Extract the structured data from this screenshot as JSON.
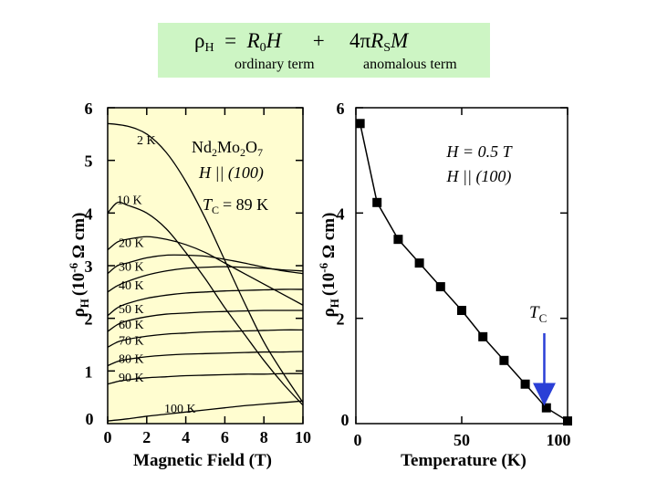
{
  "formula": {
    "rho_sym": "ρ",
    "rho_sub": "H",
    "equals": "=",
    "r0": "R",
    "r0_sub": "0",
    "h": "H",
    "plus": "+",
    "four_pi": "4π",
    "rs": "R",
    "rs_sub": "S",
    "m": "M",
    "ordinary_label": "ordinary term",
    "anomalous_label": "anomalous term"
  },
  "colors": {
    "panel_bg": "#fffdd0",
    "formula_bg": "#cdf5c4",
    "arrow": "#2a3fd6",
    "ink": "#000000"
  },
  "chart_data": [
    {
      "type": "line",
      "title": "Nd2Mo2O7, H || (100)",
      "annotation_material": "Nd",
      "annotation_material_parts": [
        "Nd",
        "2",
        "Mo",
        "2",
        "O",
        "7"
      ],
      "annotation_field": "H || (100)",
      "annotation_tc": "T",
      "annotation_tc_sub": "C",
      "annotation_tc_value": "= 89 K",
      "xlabel": "Magnetic Field (T)",
      "ylabel_rho": "ρ",
      "ylabel_sub": "H",
      "ylabel_unit_pre": "(10",
      "ylabel_unit_exp": "-6",
      "ylabel_unit_post": " Ω cm)",
      "xlim": [
        0,
        10
      ],
      "ylim": [
        0,
        6
      ],
      "xticks": [
        "0",
        "2",
        "4",
        "6",
        "8",
        "10"
      ],
      "yticks": [
        "0",
        "1",
        "2",
        "3",
        "4",
        "5",
        "6"
      ],
      "y_origin_label": "0",
      "series": [
        {
          "name": "2 K",
          "points": [
            [
              0,
              5.7
            ],
            [
              1,
              5.65
            ],
            [
              2,
              5.5
            ],
            [
              3,
              5.15
            ],
            [
              4,
              4.6
            ],
            [
              5,
              3.9
            ],
            [
              6,
              3.1
            ],
            [
              7,
              2.3
            ],
            [
              8,
              1.55
            ],
            [
              9,
              0.95
            ],
            [
              10,
              0.4
            ]
          ]
        },
        {
          "name": "10 K",
          "points": [
            [
              0,
              4.0
            ],
            [
              0.5,
              4.2
            ],
            [
              1,
              4.15
            ],
            [
              2,
              4.0
            ],
            [
              3,
              3.7
            ],
            [
              4,
              3.25
            ],
            [
              5,
              2.75
            ],
            [
              6,
              2.2
            ],
            [
              7,
              1.7
            ],
            [
              8,
              1.2
            ],
            [
              9,
              0.75
            ],
            [
              10,
              0.35
            ]
          ]
        },
        {
          "name": "20 K",
          "points": [
            [
              0,
              3.3
            ],
            [
              0.5,
              3.45
            ],
            [
              1,
              3.5
            ],
            [
              2,
              3.55
            ],
            [
              3,
              3.5
            ],
            [
              4,
              3.4
            ],
            [
              5,
              3.25
            ],
            [
              6,
              3.05
            ],
            [
              7,
              2.85
            ],
            [
              8,
              2.65
            ],
            [
              9,
              2.45
            ],
            [
              10,
              2.25
            ]
          ]
        },
        {
          "name": "30 K",
          "points": [
            [
              0,
              2.85
            ],
            [
              0.5,
              3.0
            ],
            [
              1,
              3.05
            ],
            [
              2,
              3.15
            ],
            [
              3,
              3.2
            ],
            [
              4,
              3.2
            ],
            [
              5,
              3.18
            ],
            [
              6,
              3.12
            ],
            [
              7,
              3.05
            ],
            [
              8,
              2.97
            ],
            [
              9,
              2.9
            ],
            [
              10,
              2.85
            ]
          ]
        },
        {
          "name": "40 K",
          "points": [
            [
              0,
              2.5
            ],
            [
              0.5,
              2.62
            ],
            [
              1,
              2.7
            ],
            [
              2,
              2.82
            ],
            [
              3,
              2.9
            ],
            [
              4,
              2.95
            ],
            [
              5,
              2.97
            ],
            [
              6,
              2.98
            ],
            [
              7,
              2.97
            ],
            [
              8,
              2.95
            ],
            [
              9,
              2.92
            ],
            [
              10,
              2.9
            ]
          ]
        },
        {
          "name": "50 K",
          "points": [
            [
              0,
              2.05
            ],
            [
              0.5,
              2.2
            ],
            [
              1,
              2.28
            ],
            [
              2,
              2.38
            ],
            [
              3,
              2.44
            ],
            [
              4,
              2.48
            ],
            [
              5,
              2.5
            ],
            [
              6,
              2.52
            ],
            [
              7,
              2.53
            ],
            [
              8,
              2.54
            ],
            [
              9,
              2.55
            ],
            [
              10,
              2.55
            ]
          ]
        },
        {
          "name": "60 K",
          "points": [
            [
              0,
              1.75
            ],
            [
              0.5,
              1.88
            ],
            [
              1,
              1.95
            ],
            [
              2,
              2.03
            ],
            [
              3,
              2.08
            ],
            [
              4,
              2.1
            ],
            [
              5,
              2.12
            ],
            [
              6,
              2.13
            ],
            [
              7,
              2.14
            ],
            [
              8,
              2.15
            ],
            [
              9,
              2.15
            ],
            [
              10,
              2.15
            ]
          ]
        },
        {
          "name": "70 K",
          "points": [
            [
              0,
              1.45
            ],
            [
              0.5,
              1.55
            ],
            [
              1,
              1.6
            ],
            [
              2,
              1.66
            ],
            [
              3,
              1.7
            ],
            [
              4,
              1.72
            ],
            [
              5,
              1.74
            ],
            [
              6,
              1.75
            ],
            [
              7,
              1.76
            ],
            [
              8,
              1.77
            ],
            [
              9,
              1.78
            ],
            [
              10,
              1.78
            ]
          ]
        },
        {
          "name": "80 K",
          "points": [
            [
              0,
              1.1
            ],
            [
              0.5,
              1.18
            ],
            [
              1,
              1.22
            ],
            [
              2,
              1.27
            ],
            [
              3,
              1.3
            ],
            [
              4,
              1.32
            ],
            [
              5,
              1.33
            ],
            [
              6,
              1.34
            ],
            [
              7,
              1.35
            ],
            [
              8,
              1.36
            ],
            [
              9,
              1.36
            ],
            [
              10,
              1.37
            ]
          ]
        },
        {
          "name": "90 K",
          "points": [
            [
              0,
              0.75
            ],
            [
              0.5,
              0.8
            ],
            [
              1,
              0.83
            ],
            [
              2,
              0.87
            ],
            [
              3,
              0.89
            ],
            [
              4,
              0.91
            ],
            [
              5,
              0.92
            ],
            [
              6,
              0.93
            ],
            [
              7,
              0.94
            ],
            [
              8,
              0.94
            ],
            [
              9,
              0.95
            ],
            [
              10,
              0.95
            ]
          ]
        },
        {
          "name": "100 K",
          "points": [
            [
              0,
              0.05
            ],
            [
              1,
              0.09
            ],
            [
              2,
              0.14
            ],
            [
              3,
              0.18
            ],
            [
              4,
              0.22
            ],
            [
              5,
              0.26
            ],
            [
              6,
              0.3
            ],
            [
              7,
              0.34
            ],
            [
              8,
              0.37
            ],
            [
              9,
              0.4
            ],
            [
              10,
              0.43
            ]
          ]
        }
      ]
    },
    {
      "type": "scatter",
      "annotation_field_1": "H = 0.5 T",
      "annotation_field_2": "H || (100)",
      "marker_label": "T",
      "marker_label_sub": "C",
      "marker_x": 89,
      "xlabel": "Temperature (K)",
      "ylabel_rho": "ρ",
      "ylabel_sub": "H",
      "ylabel_unit_pre": "(10",
      "ylabel_unit_exp": "-6",
      "ylabel_unit_post": " Ω cm)",
      "xlim": [
        0,
        100
      ],
      "ylim": [
        0,
        6
      ],
      "xticks": [
        "0",
        "50",
        "100"
      ],
      "yticks": [
        "0",
        "2",
        "4",
        "6"
      ],
      "x": [
        2,
        10,
        20,
        30,
        40,
        50,
        60,
        70,
        80,
        90,
        100
      ],
      "y": [
        5.7,
        4.2,
        3.5,
        3.05,
        2.6,
        2.15,
        1.65,
        1.2,
        0.75,
        0.3,
        0.05
      ]
    }
  ]
}
